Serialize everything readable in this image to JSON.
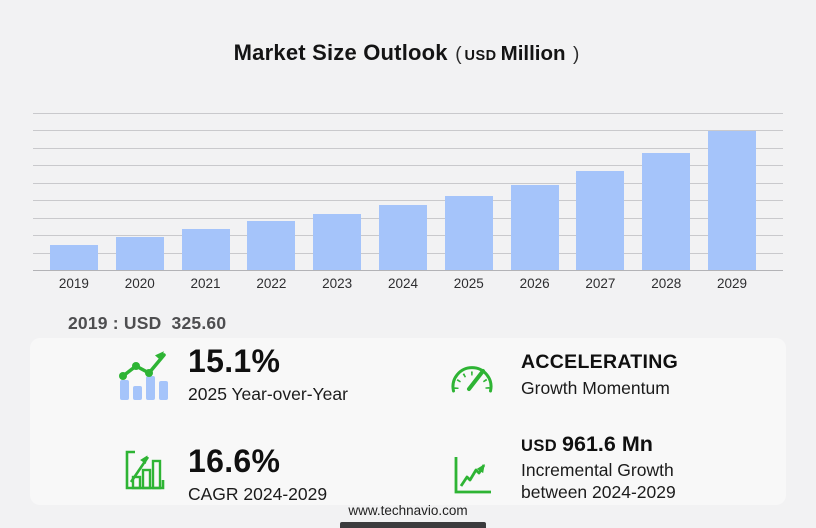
{
  "title": {
    "main": "Market Size Outlook",
    "open_paren": "(",
    "currency": "USD",
    "unit": "Million",
    "close_paren": ")"
  },
  "chart_data": {
    "type": "bar",
    "title": "Market Size Outlook (USD Million)",
    "categories": [
      "2019",
      "2020",
      "2021",
      "2022",
      "2023",
      "2024",
      "2025",
      "2026",
      "2027",
      "2028",
      "2029"
    ],
    "values": [
      325.6,
      426,
      528,
      632,
      725,
      831,
      956.5,
      1090,
      1270,
      1500,
      1792.6
    ],
    "xlabel": "",
    "ylabel": "",
    "ylim": [
      0,
      2020
    ],
    "gridline_count": 10,
    "grid": true,
    "legend": false,
    "bar_color": "#a5c4fa"
  },
  "baseline_note": "2019 : USD  325.60",
  "stats": [
    {
      "icon": "bar-trend-icon",
      "value": "15.1%",
      "label": "2025 Year-over-Year"
    },
    {
      "icon": "speedometer-icon",
      "value": "ACCELERATING",
      "label": "Growth Momentum"
    },
    {
      "icon": "bar-growth-icon",
      "value": "16.6%",
      "label": "CAGR 2024-2029"
    },
    {
      "icon": "line-growth-icon",
      "value_prefix": "USD",
      "value": "961.6 Mn",
      "label": "Incremental Growth",
      "label2": "between 2024-2029"
    }
  ],
  "colors": {
    "bar_blue": "#a5c4fa",
    "accent_green": "#2eb434",
    "background": "#f2f2f3"
  },
  "footer": {
    "website": "www.technavio.com"
  }
}
